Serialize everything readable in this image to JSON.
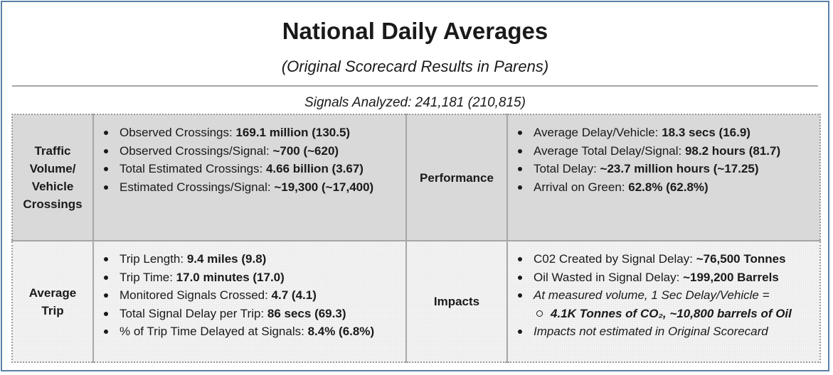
{
  "header": {
    "title": "National Daily Averages",
    "subtitle": "(Original Scorecard Results in Parens)",
    "signals_analyzed": "Signals Analyzed: 241,181 (210,815)"
  },
  "traffic": {
    "label_line1": "Traffic",
    "label_line2": "Volume/",
    "label_line3": "Vehicle",
    "label_line4": "Crossings",
    "items": [
      {
        "label": "Observed Crossings: ",
        "value": "169.1 million (130.5)"
      },
      {
        "label": "Observed Crossings/Signal: ",
        "value": "~700 (~620)"
      },
      {
        "label": "Total Estimated Crossings: ",
        "value": "4.66 billion (3.67)"
      },
      {
        "label": "Estimated Crossings/Signal: ",
        "value": "~19,300 (~17,400)"
      }
    ]
  },
  "performance": {
    "label": "Performance",
    "items": [
      {
        "label": "Average Delay/Vehicle: ",
        "value": "18.3 secs (16.9)"
      },
      {
        "label": "Average Total Delay/Signal: ",
        "value": "98.2 hours (81.7)"
      },
      {
        "label": "Total Delay: ",
        "value": "~23.7 million hours (~17.25)"
      },
      {
        "label": "Arrival on Green: ",
        "value": "62.8% (62.8%)"
      }
    ]
  },
  "trip": {
    "label_line1": "Average",
    "label_line2": "Trip",
    "items": [
      {
        "label": "Trip Length: ",
        "value": "9.4 miles (9.8)"
      },
      {
        "label": "Trip Time: ",
        "value": "17.0 minutes (17.0)"
      },
      {
        "label": "Monitored Signals Crossed: ",
        "value": "4.7 (4.1)"
      },
      {
        "label": "Total Signal Delay per Trip: ",
        "value": "86 secs (69.3)"
      },
      {
        "label": "% of Trip Time Delayed at Signals: ",
        "value": "8.4% (6.8%)"
      }
    ]
  },
  "impacts": {
    "label": "Impacts",
    "items": [
      {
        "label": "C02 Created by Signal Delay: ",
        "value": "~76,500 Tonnes"
      },
      {
        "label": "Oil Wasted in Signal Delay: ",
        "value": "~199,200 Barrels"
      }
    ],
    "note1": "At measured volume, 1 Sec Delay/Vehicle =",
    "sub_item": "4.1K Tonnes of CO₂, ~10,800 barrels of Oil",
    "note2": "Impacts not estimated in Original Scorecard"
  }
}
